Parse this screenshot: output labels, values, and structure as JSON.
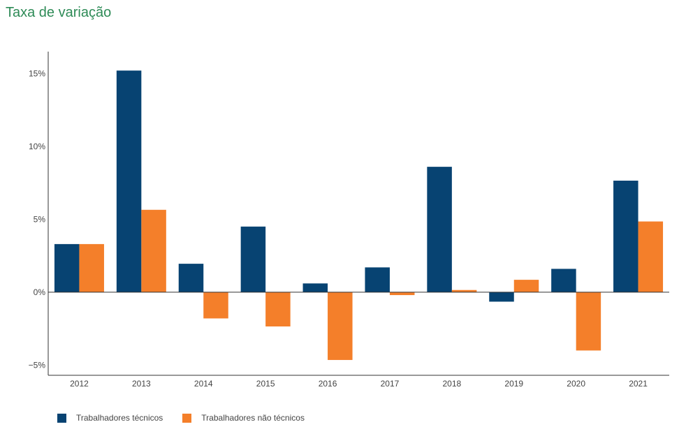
{
  "title": "Taxa de variação",
  "colors": {
    "title": "#2e8b57",
    "axis": "#333333",
    "series_1": "#074372",
    "series_2": "#f47f2a"
  },
  "chart_data": {
    "type": "bar",
    "categories": [
      "2012",
      "2013",
      "2014",
      "2015",
      "2016",
      "2017",
      "2018",
      "2019",
      "2020",
      "2021"
    ],
    "series": [
      {
        "name": "Trabalhadores técnicos",
        "color": "#074372",
        "values": [
          3.3,
          15.2,
          1.95,
          4.5,
          0.6,
          1.7,
          8.6,
          -0.65,
          1.6,
          7.65
        ]
      },
      {
        "name": "Trabalhadores não técnicos",
        "color": "#f47f2a",
        "values": [
          3.3,
          5.65,
          -1.8,
          -2.35,
          -4.65,
          -0.2,
          0.15,
          0.85,
          -4.0,
          4.85
        ]
      }
    ],
    "y_ticks": [
      {
        "value": -5,
        "label": "−5%"
      },
      {
        "value": 0,
        "label": "0%"
      },
      {
        "value": 5,
        "label": "5%"
      },
      {
        "value": 10,
        "label": "10%"
      },
      {
        "value": 15,
        "label": "15%"
      }
    ],
    "ylim": [
      -5.7,
      16.5
    ],
    "grid": false,
    "legend_position": "bottom-left"
  }
}
